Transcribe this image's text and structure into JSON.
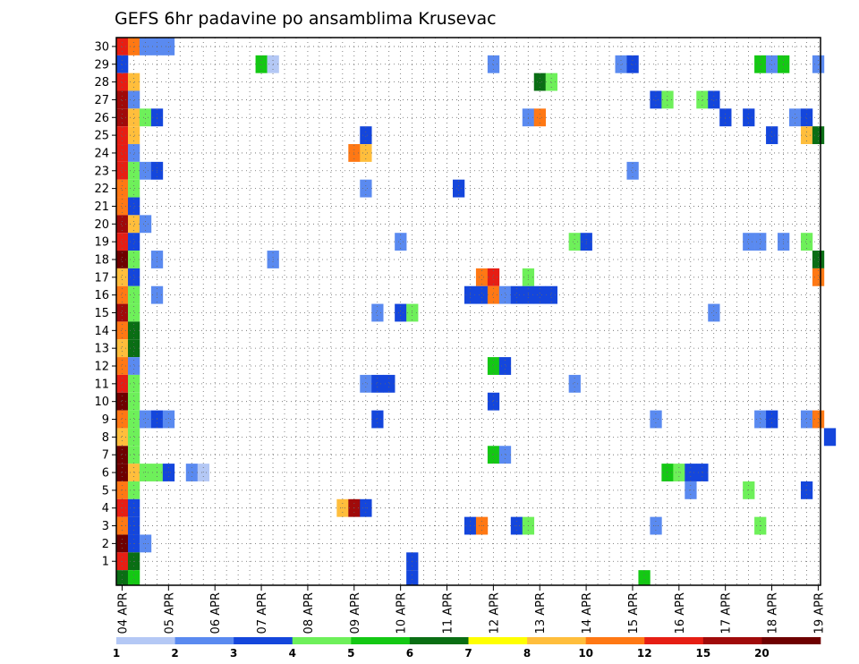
{
  "chart_data": {
    "type": "heatmap",
    "title": "GEFS 6hr padavine po ansamblima Krusevac",
    "xlabel": "",
    "ylabel": "",
    "x_ticks": [
      "04 APR",
      "05 APR",
      "06 APR",
      "07 APR",
      "08 APR",
      "09 APR",
      "10 APR",
      "11 APR",
      "12 APR",
      "13 APR",
      "14 APR",
      "15 APR",
      "16 APR",
      "17 APR",
      "18 APR",
      "19 APR"
    ],
    "y_ticks": [
      "1",
      "2",
      "3",
      "4",
      "5",
      "6",
      "7",
      "8",
      "9",
      "10",
      "11",
      "12",
      "13",
      "14",
      "15",
      "16",
      "17",
      "18",
      "19",
      "20",
      "21",
      "22",
      "23",
      "24",
      "25",
      "26",
      "27",
      "28",
      "29",
      "30"
    ],
    "grid": true,
    "time_steps_per_day": 4,
    "colorbar": {
      "labels": [
        "1",
        "2",
        "3",
        "4",
        "5",
        "6",
        "7",
        "8",
        "10",
        "12",
        "15",
        "20"
      ],
      "colors": [
        "#b4c8f5",
        "#5a8af0",
        "#1446dc",
        "#6ef05a",
        "#14c814",
        "#0a6e14",
        "#ffff00",
        "#ffbe3c",
        "#ff7814",
        "#e61e14",
        "#a00a0a",
        "#6e0000"
      ]
    },
    "cells": [
      [
        "04 APR 00",
        30,
        12
      ],
      [
        "04 APR 06",
        30,
        10
      ],
      [
        "04 APR 12",
        30,
        2
      ],
      [
        "04 APR 18",
        30,
        2
      ],
      [
        "05 APR 00",
        30,
        2
      ],
      [
        "04 APR 00",
        29,
        3
      ],
      [
        "07 APR 00",
        29,
        5
      ],
      [
        "07 APR 06",
        29,
        1
      ],
      [
        "12 APR 00",
        29,
        2
      ],
      [
        "14 APR 18",
        29,
        2
      ],
      [
        "15 APR 00",
        29,
        3
      ],
      [
        "17 APR 18",
        29,
        5
      ],
      [
        "18 APR 00",
        29,
        2
      ],
      [
        "18 APR 06",
        29,
        5
      ],
      [
        "19 APR 00",
        29,
        2
      ],
      [
        "04 APR 00",
        28,
        12
      ],
      [
        "04 APR 06",
        28,
        8
      ],
      [
        "13 APR 00",
        28,
        6
      ],
      [
        "13 APR 06",
        28,
        4
      ],
      [
        "04 APR 00",
        27,
        15
      ],
      [
        "04 APR 06",
        27,
        2
      ],
      [
        "15 APR 12",
        27,
        3
      ],
      [
        "15 APR 18",
        27,
        4
      ],
      [
        "16 APR 12",
        27,
        4
      ],
      [
        "16 APR 18",
        27,
        3
      ],
      [
        "04 APR 00",
        26,
        15
      ],
      [
        "04 APR 06",
        26,
        8
      ],
      [
        "04 APR 12",
        26,
        4
      ],
      [
        "04 APR 18",
        26,
        3
      ],
      [
        "12 APR 18",
        26,
        2
      ],
      [
        "13 APR 00",
        26,
        10
      ],
      [
        "17 APR 00",
        26,
        3
      ],
      [
        "17 APR 12",
        26,
        3
      ],
      [
        "18 APR 12",
        26,
        2
      ],
      [
        "18 APR 18",
        26,
        3
      ],
      [
        "04 APR 00",
        25,
        12
      ],
      [
        "04 APR 06",
        25,
        8
      ],
      [
        "09 APR 06",
        25,
        3
      ],
      [
        "18 APR 00",
        25,
        3
      ],
      [
        "18 APR 18",
        25,
        8
      ],
      [
        "19 APR 00",
        25,
        6
      ],
      [
        "04 APR 00",
        24,
        12
      ],
      [
        "04 APR 06",
        24,
        2
      ],
      [
        "09 APR 00",
        24,
        10
      ],
      [
        "09 APR 06",
        24,
        8
      ],
      [
        "04 APR 00",
        23,
        12
      ],
      [
        "04 APR 06",
        23,
        4
      ],
      [
        "04 APR 12",
        23,
        2
      ],
      [
        "04 APR 18",
        23,
        3
      ],
      [
        "15 APR 00",
        23,
        2
      ],
      [
        "04 APR 00",
        22,
        10
      ],
      [
        "04 APR 06",
        22,
        4
      ],
      [
        "09 APR 06",
        22,
        2
      ],
      [
        "11 APR 06",
        22,
        3
      ],
      [
        "04 APR 00",
        21,
        10
      ],
      [
        "04 APR 06",
        21,
        3
      ],
      [
        "04 APR 00",
        20,
        15
      ],
      [
        "04 APR 06",
        20,
        8
      ],
      [
        "04 APR 12",
        20,
        2
      ],
      [
        "04 APR 00",
        19,
        12
      ],
      [
        "04 APR 06",
        19,
        3
      ],
      [
        "10 APR 00",
        19,
        2
      ],
      [
        "13 APR 18",
        19,
        4
      ],
      [
        "14 APR 00",
        19,
        3
      ],
      [
        "17 APR 12",
        19,
        2
      ],
      [
        "17 APR 18",
        19,
        2
      ],
      [
        "18 APR 06",
        19,
        2
      ],
      [
        "18 APR 18",
        19,
        4
      ],
      [
        "04 APR 00",
        18,
        20
      ],
      [
        "04 APR 06",
        18,
        4
      ],
      [
        "04 APR 18",
        18,
        2
      ],
      [
        "07 APR 06",
        18,
        2
      ],
      [
        "19 APR 00",
        18,
        6
      ],
      [
        "04 APR 00",
        17,
        8
      ],
      [
        "04 APR 06",
        17,
        3
      ],
      [
        "11 APR 18",
        17,
        10
      ],
      [
        "12 APR 00",
        17,
        12
      ],
      [
        "12 APR 18",
        17,
        4
      ],
      [
        "19 APR 00",
        17,
        10
      ],
      [
        "04 APR 00",
        16,
        10
      ],
      [
        "04 APR 06",
        16,
        4
      ],
      [
        "04 APR 18",
        16,
        2
      ],
      [
        "11 APR 12",
        16,
        3
      ],
      [
        "11 APR 18",
        16,
        3
      ],
      [
        "12 APR 00",
        16,
        10
      ],
      [
        "12 APR 06",
        16,
        2
      ],
      [
        "12 APR 12",
        16,
        3
      ],
      [
        "12 APR 18",
        16,
        3
      ],
      [
        "13 APR 00",
        16,
        3
      ],
      [
        "13 APR 06",
        16,
        3
      ],
      [
        "04 APR 00",
        15,
        15
      ],
      [
        "04 APR 06",
        15,
        4
      ],
      [
        "09 APR 12",
        15,
        2
      ],
      [
        "10 APR 00",
        15,
        3
      ],
      [
        "10 APR 06",
        15,
        4
      ],
      [
        "16 APR 18",
        15,
        2
      ],
      [
        "04 APR 00",
        14,
        10
      ],
      [
        "04 APR 06",
        14,
        6
      ],
      [
        "04 APR 00",
        13,
        8
      ],
      [
        "04 APR 06",
        13,
        6
      ],
      [
        "04 APR 00",
        12,
        10
      ],
      [
        "04 APR 06",
        12,
        2
      ],
      [
        "12 APR 00",
        12,
        5
      ],
      [
        "12 APR 06",
        12,
        3
      ],
      [
        "04 APR 00",
        11,
        12
      ],
      [
        "04 APR 06",
        11,
        4
      ],
      [
        "09 APR 06",
        11,
        2
      ],
      [
        "09 APR 12",
        11,
        3
      ],
      [
        "09 APR 18",
        11,
        3
      ],
      [
        "13 APR 18",
        11,
        2
      ],
      [
        "04 APR 00",
        10,
        20
      ],
      [
        "04 APR 06",
        10,
        4
      ],
      [
        "12 APR 00",
        10,
        3
      ],
      [
        "04 APR 00",
        9,
        10
      ],
      [
        "04 APR 06",
        9,
        4
      ],
      [
        "04 APR 12",
        9,
        2
      ],
      [
        "04 APR 18",
        9,
        3
      ],
      [
        "05 APR 00",
        9,
        2
      ],
      [
        "09 APR 12",
        9,
        3
      ],
      [
        "15 APR 12",
        9,
        2
      ],
      [
        "17 APR 18",
        9,
        2
      ],
      [
        "18 APR 00",
        9,
        3
      ],
      [
        "18 APR 18",
        9,
        2
      ],
      [
        "19 APR 00",
        9,
        10
      ],
      [
        "04 APR 00",
        8,
        8
      ],
      [
        "04 APR 06",
        8,
        4
      ],
      [
        "19 APR 06",
        8,
        3
      ],
      [
        "04 APR 00",
        7,
        20
      ],
      [
        "04 APR 06",
        7,
        4
      ],
      [
        "12 APR 00",
        7,
        5
      ],
      [
        "12 APR 06",
        7,
        2
      ],
      [
        "04 APR 00",
        6,
        20
      ],
      [
        "04 APR 06",
        6,
        8
      ],
      [
        "04 APR 12",
        6,
        4
      ],
      [
        "04 APR 18",
        6,
        4
      ],
      [
        "05 APR 00",
        6,
        3
      ],
      [
        "05 APR 12",
        6,
        2
      ],
      [
        "05 APR 18",
        6,
        1
      ],
      [
        "15 APR 18",
        6,
        5
      ],
      [
        "16 APR 00",
        6,
        4
      ],
      [
        "16 APR 06",
        6,
        3
      ],
      [
        "16 APR 12",
        6,
        3
      ],
      [
        "04 APR 00",
        5,
        10
      ],
      [
        "04 APR 06",
        5,
        4
      ],
      [
        "16 APR 06",
        5,
        2
      ],
      [
        "17 APR 12",
        5,
        4
      ],
      [
        "18 APR 18",
        5,
        3
      ],
      [
        "04 APR 00",
        4,
        12
      ],
      [
        "04 APR 06",
        4,
        3
      ],
      [
        "08 APR 18",
        4,
        8
      ],
      [
        "09 APR 00",
        4,
        15
      ],
      [
        "09 APR 06",
        4,
        3
      ],
      [
        "04 APR 00",
        3,
        10
      ],
      [
        "04 APR 06",
        3,
        3
      ],
      [
        "11 APR 12",
        3,
        3
      ],
      [
        "11 APR 18",
        3,
        10
      ],
      [
        "12 APR 12",
        3,
        3
      ],
      [
        "12 APR 18",
        3,
        4
      ],
      [
        "15 APR 12",
        3,
        2
      ],
      [
        "17 APR 18",
        3,
        4
      ],
      [
        "04 APR 00",
        2,
        20
      ],
      [
        "04 APR 06",
        2,
        3
      ],
      [
        "04 APR 12",
        2,
        2
      ],
      [
        "04 APR 00",
        1,
        12
      ],
      [
        "04 APR 06",
        1,
        6
      ],
      [
        "10 APR 06",
        1,
        3
      ],
      [
        "04 APR 00",
        0,
        6
      ],
      [
        "04 APR 06",
        0,
        5
      ],
      [
        "10 APR 06",
        0,
        3
      ],
      [
        "15 APR 06",
        0,
        5
      ]
    ]
  }
}
